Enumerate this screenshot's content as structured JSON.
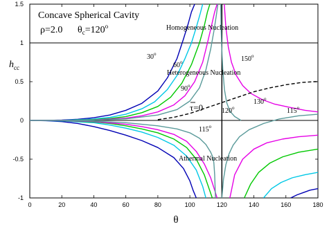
{
  "chart_data": {
    "type": "line",
    "title_box": {
      "line1": "Concave Spherical Cavity",
      "rho_label": "ρ=2.0",
      "theta_label": "θ",
      "theta_sub": "c",
      "theta_value": "=120",
      "theta_deg": "o"
    },
    "xlabel": "θ",
    "ylabel": "h",
    "ylabel_sub": "cc",
    "xlim": [
      0,
      180
    ],
    "ylim": [
      -1,
      1.5
    ],
    "xticks": [
      0,
      20,
      40,
      60,
      80,
      100,
      120,
      140,
      160,
      180
    ],
    "yticks": [
      -1,
      -0.5,
      0,
      0.5,
      1,
      1.5
    ],
    "ytick_labels": [
      "-1",
      "-0.5",
      "0",
      "0.5",
      "1",
      "1.5"
    ],
    "reference_lines": {
      "h_horizontal": [
        0,
        1
      ],
      "theta_vertical": 120
    },
    "region_labels": {
      "homogeneous": "Homogeneous Nucleation",
      "heterogeneous": "Heterogeneous Nucleation",
      "athermal": "Athermal Nucleation"
    },
    "tau_label": {
      "tau": "τ",
      "rest": "=0"
    },
    "curve_labels": [
      {
        "text": "30",
        "deg": "o"
      },
      {
        "text": "60",
        "deg": "o"
      },
      {
        "text": "90",
        "deg": "o"
      },
      {
        "text": "150",
        "deg": "o"
      },
      {
        "text": "130",
        "deg": "o"
      },
      {
        "text": "120",
        "deg": "o"
      },
      {
        "text": "115",
        "deg": "o"
      },
      {
        "text": "115",
        "deg": "o"
      }
    ],
    "series": [
      {
        "color": "#0000b4",
        "upper": {
          "x": [
            0,
            10,
            20,
            30,
            40,
            50,
            60,
            70,
            80,
            86,
            92,
            96,
            99,
            101,
            103
          ],
          "y": [
            0,
            0.001,
            0.005,
            0.015,
            0.035,
            0.07,
            0.13,
            0.22,
            0.38,
            0.55,
            0.8,
            1.05,
            1.25,
            1.4,
            1.5
          ]
        },
        "lower": {
          "x": [
            0,
            10,
            20,
            30,
            40,
            50,
            60,
            70,
            80,
            90,
            96,
            100,
            102,
            104
          ],
          "y": [
            0,
            -0.004,
            -0.015,
            -0.04,
            -0.08,
            -0.13,
            -0.19,
            -0.26,
            -0.35,
            -0.48,
            -0.62,
            -0.78,
            -0.9,
            -1.0
          ]
        },
        "lower2": {
          "x": [
            163,
            167,
            171,
            175,
            180
          ],
          "y": [
            -1.0,
            -0.96,
            -0.93,
            -0.9,
            -0.88
          ]
        }
      },
      {
        "color": "#00c8e6",
        "upper": {
          "x": [
            0,
            20,
            40,
            50,
            60,
            70,
            78,
            86,
            92,
            97,
            101,
            104,
            106.5,
            108
          ],
          "y": [
            0,
            0.002,
            0.018,
            0.04,
            0.08,
            0.15,
            0.24,
            0.4,
            0.58,
            0.8,
            1.0,
            1.2,
            1.38,
            1.5
          ]
        },
        "lower": {
          "x": [
            0,
            20,
            40,
            50,
            60,
            70,
            80,
            90,
            98,
            104,
            108,
            110
          ],
          "y": [
            0,
            -0.006,
            -0.03,
            -0.06,
            -0.1,
            -0.15,
            -0.22,
            -0.32,
            -0.46,
            -0.64,
            -0.85,
            -1.0
          ]
        },
        "lower2": {
          "x": [
            146,
            151,
            157,
            164,
            172,
            180
          ],
          "y": [
            -1.0,
            -0.88,
            -0.8,
            -0.74,
            -0.7,
            -0.67
          ]
        }
      },
      {
        "color": "#00c800",
        "upper": {
          "x": [
            0,
            20,
            40,
            50,
            60,
            70,
            80,
            88,
            95,
            101,
            106,
            109,
            111,
            112.5
          ],
          "y": [
            0,
            0.001,
            0.01,
            0.025,
            0.05,
            0.1,
            0.18,
            0.3,
            0.48,
            0.72,
            1.0,
            1.22,
            1.4,
            1.5
          ]
        },
        "lower": {
          "x": [
            0,
            20,
            40,
            50,
            60,
            70,
            80,
            90,
            98,
            104,
            109,
            112,
            114
          ],
          "y": [
            0,
            -0.004,
            -0.02,
            -0.04,
            -0.07,
            -0.11,
            -0.16,
            -0.24,
            -0.35,
            -0.5,
            -0.7,
            -0.88,
            -1.0
          ]
        },
        "lower2": {
          "x": [
            134,
            138,
            143,
            150,
            158,
            168,
            180
          ],
          "y": [
            -1.0,
            -0.82,
            -0.67,
            -0.55,
            -0.47,
            -0.41,
            -0.37
          ]
        }
      },
      {
        "color": "#e600e6",
        "upper": {
          "x": [
            0,
            20,
            40,
            60,
            70,
            80,
            90,
            97,
            103,
            108,
            111,
            113.5,
            115.5,
            117
          ],
          "y": [
            0,
            0.001,
            0.006,
            0.03,
            0.06,
            0.11,
            0.2,
            0.32,
            0.5,
            0.75,
            1.0,
            1.22,
            1.4,
            1.5
          ]
        },
        "lower": {
          "x": [
            0,
            20,
            40,
            60,
            70,
            80,
            90,
            98,
            104,
            109,
            113,
            115.5,
            117
          ],
          "y": [
            0,
            -0.003,
            -0.015,
            -0.05,
            -0.08,
            -0.12,
            -0.18,
            -0.27,
            -0.4,
            -0.56,
            -0.74,
            -0.9,
            -1.0
          ]
        },
        "upper2": {
          "x": [
            121.5,
            122.5,
            124,
            126,
            129,
            133,
            138,
            145,
            153,
            162,
            172,
            180
          ],
          "y": [
            1.5,
            1.2,
            0.95,
            0.75,
            0.58,
            0.45,
            0.35,
            0.27,
            0.21,
            0.17,
            0.13,
            0.11
          ]
        },
        "lower2": {
          "x": [
            125,
            128,
            133,
            140,
            148,
            158,
            168,
            180
          ],
          "y": [
            -1.0,
            -0.7,
            -0.5,
            -0.37,
            -0.29,
            -0.24,
            -0.21,
            -0.19
          ]
        }
      },
      {
        "color": "#5a9a9a",
        "upper": {
          "x": [
            0,
            20,
            40,
            60,
            80,
            92,
            100,
            106,
            110,
            113,
            115,
            116.5,
            117.5
          ],
          "y": [
            0,
            0.0005,
            0.004,
            0.02,
            0.07,
            0.14,
            0.25,
            0.42,
            0.65,
            0.92,
            1.15,
            1.35,
            1.5
          ]
        },
        "lower": {
          "x": [
            0,
            20,
            40,
            60,
            80,
            92,
            100,
            106,
            110,
            113,
            114.5,
            115,
            115.5,
            116
          ],
          "y": [
            0,
            -0.002,
            -0.01,
            -0.03,
            -0.07,
            -0.11,
            -0.16,
            -0.23,
            -0.31,
            -0.41,
            -0.48,
            -0.55,
            -0.7,
            -1.0
          ]
        },
        "upper2": {
          "x": [
            119.3,
            119.5,
            120,
            120.6,
            121.6,
            123,
            125,
            128,
            132
          ],
          "y": [
            1.5,
            1.2,
            0.9,
            0.65,
            0.4,
            0.23,
            0.12,
            0.05,
            0.0
          ]
        },
        "lower2": {
          "x": [
            120,
            121,
            122.5,
            124.5,
            127,
            131,
            137,
            146,
            156,
            168,
            180
          ],
          "y": [
            -1.0,
            -0.76,
            -0.57,
            -0.43,
            -0.32,
            -0.21,
            -0.12,
            -0.04,
            0.02,
            0.06,
            0.08
          ]
        }
      }
    ],
    "tau_zero_curve": {
      "color": "#000000",
      "dashed": true,
      "x": [
        80,
        90,
        100,
        110,
        120,
        130,
        140,
        150,
        160,
        170,
        178,
        180
      ],
      "y": [
        0.01,
        0.04,
        0.09,
        0.16,
        0.23,
        0.3,
        0.37,
        0.42,
        0.46,
        0.49,
        0.5,
        0.5
      ]
    }
  }
}
